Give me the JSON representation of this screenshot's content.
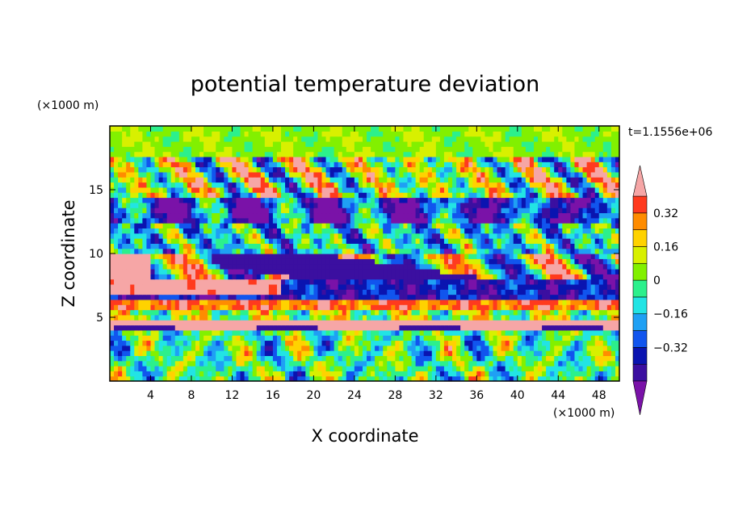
{
  "chart_data": {
    "type": "heatmap",
    "title": "potential temperature deviation",
    "xlabel": "X coordinate",
    "ylabel": "Z coordinate",
    "x_unit": "(×1000 m)",
    "y_unit": "(×1000 m)",
    "time_label": "t=1.1556e+06",
    "xlim": [
      0,
      50
    ],
    "ylim": [
      0,
      20
    ],
    "x_ticks": [
      "4",
      "8",
      "12",
      "16",
      "20",
      "24",
      "28",
      "32",
      "36",
      "40",
      "44",
      "48"
    ],
    "x_tick_values": [
      4,
      8,
      12,
      16,
      20,
      24,
      28,
      32,
      36,
      40,
      44,
      48
    ],
    "y_ticks": [
      "5",
      "10",
      "15"
    ],
    "y_tick_values": [
      5,
      10,
      15
    ],
    "colorbar": {
      "levels": [
        -0.48,
        -0.4,
        -0.32,
        -0.24,
        -0.16,
        -0.08,
        0,
        0.08,
        0.16,
        0.24,
        0.32,
        0.4,
        0.48
      ],
      "colors": [
        "#7a12a8",
        "#3b0fa0",
        "#0a14b0",
        "#1155ee",
        "#1fa0f4",
        "#22e4e4",
        "#2cf08c",
        "#82f000",
        "#d8f000",
        "#ffd200",
        "#ff8c00",
        "#ff3a1e",
        "#f6a6a6"
      ],
      "tick_labels": [
        "0.32",
        "0.16",
        "0",
        "−0.16",
        "−0.32"
      ],
      "tick_values": [
        0.32,
        0.16,
        0,
        -0.16,
        -0.32
      ],
      "extend": "both"
    }
  }
}
